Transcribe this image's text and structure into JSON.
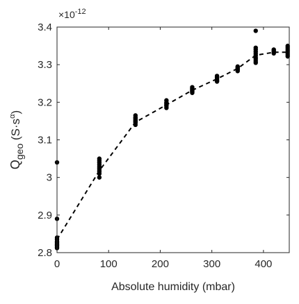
{
  "chart_data": {
    "type": "scatter",
    "title": "",
    "xlabel": "Absolute humidity (mbar)",
    "ylabel": {
      "main": "Q",
      "subscript": "geo",
      "unit_open": " (S·s",
      "unit_superscript": "α",
      "unit_close": ")"
    },
    "y_exponent": {
      "prefix": "×10",
      "power": "-12"
    },
    "xlim": [
      0,
      450
    ],
    "ylim": [
      2.8,
      3.4
    ],
    "x_ticks": [
      0,
      100,
      200,
      300,
      400
    ],
    "x_tick_labels": [
      "0",
      "100",
      "200",
      "300",
      "400"
    ],
    "y_ticks": [
      2.8,
      2.9,
      3.0,
      3.1,
      3.2,
      3.3,
      3.4
    ],
    "y_tick_labels": [
      "2.8",
      "2.9",
      "3",
      "3.1",
      "3.2",
      "3.3",
      "3.4"
    ],
    "grid": false,
    "series": [
      {
        "marker": "dot",
        "color": "#000000",
        "x": [
          0,
          0,
          0,
          0,
          0,
          0,
          0,
          0,
          0,
          0,
          0,
          0,
          82,
          82,
          82,
          82,
          82,
          82,
          82,
          82,
          82,
          82,
          152,
          152,
          152,
          152,
          152,
          152,
          152,
          152,
          152,
          212,
          212,
          212,
          212,
          212,
          212,
          212,
          262,
          262,
          262,
          262,
          262,
          262,
          262,
          310,
          310,
          310,
          310,
          310,
          310,
          350,
          350,
          350,
          350,
          350,
          385,
          385,
          385,
          385,
          385,
          385,
          385,
          385,
          385,
          385,
          420,
          420,
          420,
          420,
          447,
          447,
          447,
          447,
          447,
          447,
          447,
          447
        ],
        "y": [
          3.04,
          2.89,
          2.84,
          2.835,
          2.83,
          2.828,
          2.825,
          2.822,
          2.82,
          2.818,
          2.815,
          2.812,
          3.05,
          3.045,
          3.04,
          3.035,
          3.03,
          3.025,
          3.02,
          3.015,
          3.01,
          3.0,
          3.165,
          3.16,
          3.158,
          3.155,
          3.152,
          3.15,
          3.148,
          3.145,
          3.14,
          3.205,
          3.2,
          3.198,
          3.195,
          3.192,
          3.19,
          3.185,
          3.24,
          3.237,
          3.235,
          3.232,
          3.23,
          3.228,
          3.225,
          3.27,
          3.267,
          3.264,
          3.26,
          3.257,
          3.255,
          3.295,
          3.292,
          3.289,
          3.286,
          3.283,
          3.39,
          3.345,
          3.34,
          3.335,
          3.33,
          3.325,
          3.32,
          3.315,
          3.31,
          3.305,
          3.34,
          3.337,
          3.334,
          3.33,
          3.35,
          3.346,
          3.342,
          3.338,
          3.334,
          3.33,
          3.326,
          3.322
        ]
      },
      {
        "marker": "dashed-line",
        "color": "#000000",
        "x": [
          0,
          82,
          152,
          212,
          262,
          310,
          350,
          385,
          420,
          447
        ],
        "y": [
          2.835,
          3.018,
          3.147,
          3.193,
          3.232,
          3.262,
          3.29,
          3.325,
          3.333,
          3.333
        ]
      }
    ]
  }
}
